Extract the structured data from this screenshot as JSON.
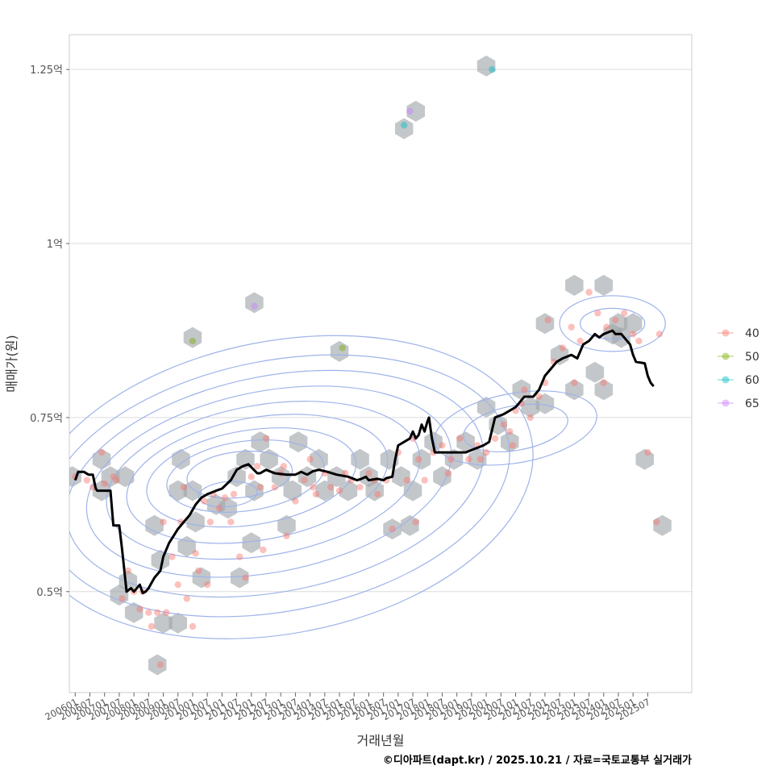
{
  "chart_data": {
    "type": "scatter",
    "title": "",
    "xlabel": "거래년월",
    "ylabel": "매매가(원)",
    "caption": "©디아파트(dapt.kr) / 2025.10.21 / 자료=국토교통부 실거래가",
    "x_range": [
      2005.8,
      2027.0
    ],
    "y_range": [
      0.355,
      1.3
    ],
    "y_ticks": [
      {
        "value": 0.5,
        "label": "0.5억"
      },
      {
        "value": 0.75,
        "label": "0.75억"
      },
      {
        "value": 1.0,
        "label": "1억"
      },
      {
        "value": 1.25,
        "label": "1.25억"
      }
    ],
    "x_ticks": [
      {
        "value": 2006.0,
        "label": "200601"
      },
      {
        "value": 2006.5,
        "label": "200607"
      },
      {
        "value": 2007.0,
        "label": "200701"
      },
      {
        "value": 2007.5,
        "label": "200707"
      },
      {
        "value": 2008.0,
        "label": "200801"
      },
      {
        "value": 2008.5,
        "label": "200807"
      },
      {
        "value": 2009.0,
        "label": "200901"
      },
      {
        "value": 2009.5,
        "label": "200907"
      },
      {
        "value": 2010.0,
        "label": "201001"
      },
      {
        "value": 2010.5,
        "label": "201007"
      },
      {
        "value": 2011.0,
        "label": "201101"
      },
      {
        "value": 2011.5,
        "label": "201107"
      },
      {
        "value": 2012.0,
        "label": "201201"
      },
      {
        "value": 2012.5,
        "label": "201207"
      },
      {
        "value": 2013.0,
        "label": "201301"
      },
      {
        "value": 2013.5,
        "label": "201307"
      },
      {
        "value": 2014.0,
        "label": "201401"
      },
      {
        "value": 2014.5,
        "label": "201407"
      },
      {
        "value": 2015.0,
        "label": "201501"
      },
      {
        "value": 2015.5,
        "label": "201507"
      },
      {
        "value": 2016.0,
        "label": "201601"
      },
      {
        "value": 2016.5,
        "label": "201607"
      },
      {
        "value": 2017.0,
        "label": "201701"
      },
      {
        "value": 2017.5,
        "label": "201707"
      },
      {
        "value": 2018.0,
        "label": "201801"
      },
      {
        "value": 2018.5,
        "label": "201807"
      },
      {
        "value": 2019.0,
        "label": "201901"
      },
      {
        "value": 2019.5,
        "label": "201907"
      },
      {
        "value": 2020.0,
        "label": "202001"
      },
      {
        "value": 2020.5,
        "label": "202007"
      },
      {
        "value": 2021.0,
        "label": "202101"
      },
      {
        "value": 2021.5,
        "label": "202107"
      },
      {
        "value": 2022.0,
        "label": "202201"
      },
      {
        "value": 2022.5,
        "label": "202207"
      },
      {
        "value": 2023.0,
        "label": "202301"
      },
      {
        "value": 2023.5,
        "label": "202307"
      },
      {
        "value": 2024.0,
        "label": "202401"
      },
      {
        "value": 2024.5,
        "label": "202407"
      },
      {
        "value": 2025.0,
        "label": "202501"
      },
      {
        "value": 2025.5,
        "label": "202507"
      }
    ],
    "legend": [
      {
        "label": "40",
        "color": "#F8766D"
      },
      {
        "label": "50",
        "color": "#7CAE00"
      },
      {
        "label": "60",
        "color": "#00BFC4"
      },
      {
        "label": "65",
        "color": "#C77CFF"
      }
    ],
    "legend_position": "right",
    "colors": {
      "hex": "#9ea4a9",
      "contour": "#9fb3ea",
      "trend": "#000000",
      "grid": "#dcdcdc",
      "panel_border": "#cccccc"
    },
    "hexbins": [
      [
        2005.9,
        0.665
      ],
      [
        2006.9,
        0.69
      ],
      [
        2006.9,
        0.645
      ],
      [
        2007.2,
        0.665
      ],
      [
        2007.7,
        0.665
      ],
      [
        2007.5,
        0.495
      ],
      [
        2007.8,
        0.515
      ],
      [
        2008.0,
        0.47
      ],
      [
        2008.7,
        0.595
      ],
      [
        2008.9,
        0.545
      ],
      [
        2009.5,
        0.455
      ],
      [
        2009.0,
        0.455
      ],
      [
        2008.8,
        0.395
      ],
      [
        2009.6,
        0.69
      ],
      [
        2009.5,
        0.645
      ],
      [
        2009.8,
        0.565
      ],
      [
        2010.0,
        0.645
      ],
      [
        2010.1,
        0.6
      ],
      [
        2010.3,
        0.52
      ],
      [
        2010.8,
        0.625
      ],
      [
        2011.2,
        0.62
      ],
      [
        2011.5,
        0.665
      ],
      [
        2011.8,
        0.69
      ],
      [
        2012.1,
        0.645
      ],
      [
        2012.3,
        0.715
      ],
      [
        2012.0,
        0.57
      ],
      [
        2011.6,
        0.52
      ],
      [
        2012.6,
        0.69
      ],
      [
        2013.0,
        0.665
      ],
      [
        2013.4,
        0.645
      ],
      [
        2013.6,
        0.715
      ],
      [
        2013.2,
        0.595
      ],
      [
        2013.9,
        0.665
      ],
      [
        2014.3,
        0.69
      ],
      [
        2014.5,
        0.645
      ],
      [
        2014.9,
        0.665
      ],
      [
        2015.3,
        0.645
      ],
      [
        2015.7,
        0.69
      ],
      [
        2016.0,
        0.665
      ],
      [
        2016.2,
        0.645
      ],
      [
        2016.7,
        0.69
      ],
      [
        2017.1,
        0.665
      ],
      [
        2017.5,
        0.645
      ],
      [
        2017.8,
        0.69
      ],
      [
        2018.2,
        0.715
      ],
      [
        2018.5,
        0.665
      ],
      [
        2018.9,
        0.69
      ],
      [
        2019.3,
        0.715
      ],
      [
        2019.7,
        0.69
      ],
      [
        2020.0,
        0.765
      ],
      [
        2020.4,
        0.74
      ],
      [
        2020.8,
        0.715
      ],
      [
        2021.2,
        0.79
      ],
      [
        2021.5,
        0.765
      ],
      [
        2022.0,
        0.77
      ],
      [
        2022.5,
        0.84
      ],
      [
        2023.0,
        0.79
      ],
      [
        2023.7,
        0.815
      ],
      [
        2024.0,
        0.79
      ],
      [
        2024.3,
        0.87
      ],
      [
        2024.6,
        0.865
      ],
      [
        2025.4,
        0.69
      ],
      [
        2026.0,
        0.595
      ],
      [
        2015.0,
        0.845
      ],
      [
        2010.0,
        0.865
      ],
      [
        2012.1,
        0.915
      ],
      [
        2023.0,
        0.94
      ],
      [
        2024.0,
        0.94
      ],
      [
        2022.0,
        0.885
      ],
      [
        2017.2,
        1.165
      ],
      [
        2017.6,
        1.19
      ],
      [
        2020.0,
        1.255
      ],
      [
        2016.8,
        0.59
      ],
      [
        2017.4,
        0.595
      ],
      [
        2024.5,
        0.885
      ],
      [
        2025.0,
        0.885
      ]
    ],
    "points_40": [
      [
        2006.0,
        0.665
      ],
      [
        2006.4,
        0.66
      ],
      [
        2006.9,
        0.7
      ],
      [
        2007.0,
        0.655
      ],
      [
        2007.3,
        0.665
      ],
      [
        2007.6,
        0.49
      ],
      [
        2007.8,
        0.53
      ],
      [
        2008.0,
        0.5
      ],
      [
        2008.2,
        0.475
      ],
      [
        2008.5,
        0.47
      ],
      [
        2008.6,
        0.45
      ],
      [
        2008.8,
        0.47
      ],
      [
        2008.9,
        0.395
      ],
      [
        2009.1,
        0.47
      ],
      [
        2009.3,
        0.55
      ],
      [
        2009.5,
        0.51
      ],
      [
        2009.6,
        0.6
      ],
      [
        2009.8,
        0.49
      ],
      [
        2010.0,
        0.45
      ],
      [
        2010.1,
        0.555
      ],
      [
        2010.2,
        0.53
      ],
      [
        2010.4,
        0.63
      ],
      [
        2010.5,
        0.51
      ],
      [
        2010.7,
        0.64
      ],
      [
        2010.9,
        0.62
      ],
      [
        2011.1,
        0.635
      ],
      [
        2011.3,
        0.6
      ],
      [
        2011.6,
        0.55
      ],
      [
        2011.8,
        0.52
      ],
      [
        2012.0,
        0.665
      ],
      [
        2012.2,
        0.68
      ],
      [
        2012.4,
        0.56
      ],
      [
        2012.5,
        0.72
      ],
      [
        2012.8,
        0.65
      ],
      [
        2013.0,
        0.67
      ],
      [
        2013.2,
        0.58
      ],
      [
        2013.5,
        0.63
      ],
      [
        2013.8,
        0.66
      ],
      [
        2014.0,
        0.69
      ],
      [
        2014.2,
        0.64
      ],
      [
        2014.5,
        0.67
      ],
      [
        2014.7,
        0.65
      ],
      [
        2015.0,
        0.645
      ],
      [
        2015.4,
        0.66
      ],
      [
        2015.7,
        0.65
      ],
      [
        2016.0,
        0.67
      ],
      [
        2016.3,
        0.64
      ],
      [
        2016.6,
        0.66
      ],
      [
        2016.8,
        0.59
      ],
      [
        2017.0,
        0.7
      ],
      [
        2017.3,
        0.66
      ],
      [
        2017.5,
        0.72
      ],
      [
        2017.7,
        0.69
      ],
      [
        2017.9,
        0.66
      ],
      [
        2018.2,
        0.7
      ],
      [
        2018.5,
        0.71
      ],
      [
        2018.8,
        0.69
      ],
      [
        2019.1,
        0.72
      ],
      [
        2019.4,
        0.69
      ],
      [
        2019.7,
        0.71
      ],
      [
        2020.0,
        0.7
      ],
      [
        2020.3,
        0.72
      ],
      [
        2020.6,
        0.74
      ],
      [
        2020.8,
        0.73
      ],
      [
        2021.0,
        0.76
      ],
      [
        2021.3,
        0.79
      ],
      [
        2021.5,
        0.75
      ],
      [
        2021.8,
        0.78
      ],
      [
        2022.0,
        0.8
      ],
      [
        2022.3,
        0.83
      ],
      [
        2022.6,
        0.85
      ],
      [
        2022.9,
        0.88
      ],
      [
        2023.2,
        0.86
      ],
      [
        2023.5,
        0.93
      ],
      [
        2023.8,
        0.9
      ],
      [
        2024.1,
        0.88
      ],
      [
        2024.4,
        0.89
      ],
      [
        2024.7,
        0.9
      ],
      [
        2025.0,
        0.87
      ],
      [
        2025.2,
        0.86
      ],
      [
        2025.5,
        0.7
      ],
      [
        2025.8,
        0.6
      ],
      [
        2025.9,
        0.87
      ],
      [
        2024.0,
        0.8
      ],
      [
        2023.0,
        0.8
      ],
      [
        2022.1,
        0.89
      ],
      [
        2021.2,
        0.77
      ],
      [
        2020.9,
        0.71
      ],
      [
        2019.8,
        0.69
      ],
      [
        2018.7,
        0.67
      ],
      [
        2017.6,
        0.6
      ],
      [
        2016.2,
        0.66
      ],
      [
        2015.2,
        0.67
      ],
      [
        2014.1,
        0.65
      ],
      [
        2013.1,
        0.68
      ],
      [
        2012.3,
        0.65
      ],
      [
        2011.4,
        0.64
      ],
      [
        2010.6,
        0.6
      ],
      [
        2009.7,
        0.65
      ],
      [
        2009.0,
        0.6
      ],
      [
        2008.3,
        0.5
      ],
      [
        2007.4,
        0.66
      ],
      [
        2006.6,
        0.65
      ]
    ],
    "points_50": [
      [
        2010.0,
        0.86
      ],
      [
        2015.1,
        0.85
      ]
    ],
    "points_60": [
      [
        2017.2,
        1.17
      ],
      [
        2020.2,
        1.25
      ]
    ],
    "points_65": [
      [
        2012.1,
        0.91
      ],
      [
        2017.4,
        1.19
      ]
    ],
    "trend_line": {
      "name": "moving average",
      "x": [
        2006.0,
        2006.1,
        2006.3,
        2006.45,
        2006.6,
        2006.7,
        2006.75,
        2007.1,
        2007.2,
        2007.3,
        2007.5,
        2007.6,
        2007.75,
        2007.9,
        2008.0,
        2008.2,
        2008.3,
        2008.4,
        2008.5,
        2008.7,
        2008.9,
        2009.0,
        2009.2,
        2009.35,
        2009.5,
        2009.7,
        2009.9,
        2010.1,
        2010.3,
        2010.5,
        2010.8,
        2011.0,
        2011.3,
        2011.5,
        2011.7,
        2011.9,
        2012.2,
        2012.3,
        2012.5,
        2012.8,
        2013.2,
        2013.5,
        2013.7,
        2013.9,
        2014.1,
        2014.3,
        2014.6,
        2014.9,
        2015.3,
        2015.6,
        2015.75,
        2015.9,
        2016.0,
        2016.3,
        2016.5,
        2016.6,
        2016.8,
        2016.9,
        2017.0,
        2017.4,
        2017.5,
        2017.6,
        2017.7,
        2017.8,
        2017.9,
        2018.0,
        2018.05,
        2018.15,
        2018.25,
        2018.6,
        2018.9,
        2019.3,
        2019.6,
        2019.9,
        2020.1,
        2020.3,
        2020.6,
        2020.8,
        2021.0,
        2021.1,
        2021.3,
        2021.6,
        2021.8,
        2022.0,
        2022.2,
        2022.4,
        2022.6,
        2022.9,
        2023.1,
        2023.3,
        2023.5,
        2023.6,
        2023.7,
        2023.85,
        2024.0,
        2024.3,
        2024.4,
        2024.6,
        2024.9,
        2025.0,
        2025.1,
        2025.4,
        2025.5,
        2025.6,
        2025.7
      ],
      "y": [
        0.66,
        0.672,
        0.672,
        0.668,
        0.668,
        0.648,
        0.645,
        0.645,
        0.645,
        0.595,
        0.595,
        0.56,
        0.5,
        0.505,
        0.5,
        0.51,
        0.498,
        0.5,
        0.505,
        0.52,
        0.53,
        0.55,
        0.57,
        0.58,
        0.59,
        0.6,
        0.61,
        0.625,
        0.635,
        0.64,
        0.645,
        0.648,
        0.66,
        0.675,
        0.68,
        0.683,
        0.67,
        0.67,
        0.675,
        0.67,
        0.668,
        0.668,
        0.672,
        0.668,
        0.673,
        0.675,
        0.672,
        0.668,
        0.665,
        0.66,
        0.662,
        0.665,
        0.66,
        0.662,
        0.66,
        0.663,
        0.665,
        0.69,
        0.71,
        0.72,
        0.73,
        0.72,
        0.725,
        0.74,
        0.73,
        0.745,
        0.75,
        0.72,
        0.7,
        0.7,
        0.7,
        0.7,
        0.705,
        0.71,
        0.715,
        0.75,
        0.755,
        0.76,
        0.765,
        0.77,
        0.78,
        0.78,
        0.79,
        0.81,
        0.82,
        0.83,
        0.835,
        0.84,
        0.835,
        0.855,
        0.86,
        0.865,
        0.87,
        0.865,
        0.87,
        0.875,
        0.87,
        0.87,
        0.855,
        0.84,
        0.83,
        0.828,
        0.81,
        0.8,
        0.795
      ]
    },
    "contours": [
      {
        "cx": 2013.0,
        "cy": 0.65,
        "rx": 8.7,
        "ry": 0.21,
        "rot": -11
      },
      {
        "cx": 2012.9,
        "cy": 0.652,
        "rx": 8.0,
        "ry": 0.18,
        "rot": -11
      },
      {
        "cx": 2012.8,
        "cy": 0.655,
        "rx": 7.2,
        "ry": 0.155,
        "rot": -11
      },
      {
        "cx": 2012.6,
        "cy": 0.658,
        "rx": 6.3,
        "ry": 0.13,
        "rot": -11
      },
      {
        "cx": 2012.4,
        "cy": 0.66,
        "rx": 5.4,
        "ry": 0.108,
        "rot": -10
      },
      {
        "cx": 2012.2,
        "cy": 0.662,
        "rx": 4.5,
        "ry": 0.088,
        "rot": -10
      },
      {
        "cx": 2012.0,
        "cy": 0.664,
        "rx": 3.6,
        "ry": 0.068,
        "rot": -9
      },
      {
        "cx": 2011.8,
        "cy": 0.666,
        "rx": 2.7,
        "ry": 0.05,
        "rot": -8
      },
      {
        "cx": 2011.6,
        "cy": 0.668,
        "rx": 1.8,
        "ry": 0.033,
        "rot": -6
      },
      {
        "cx": 2011.2,
        "cy": 0.64,
        "rx": 1.0,
        "ry": 0.018,
        "rot": -5
      },
      {
        "cx": 2021.0,
        "cy": 0.735,
        "rx": 2.8,
        "ry": 0.05,
        "rot": -10
      },
      {
        "cx": 2021.0,
        "cy": 0.735,
        "rx": 1.8,
        "ry": 0.032,
        "rot": -10
      },
      {
        "cx": 2024.3,
        "cy": 0.885,
        "rx": 1.8,
        "ry": 0.04,
        "rot": 0
      },
      {
        "cx": 2024.3,
        "cy": 0.885,
        "rx": 1.1,
        "ry": 0.022,
        "rot": 0
      }
    ]
  }
}
